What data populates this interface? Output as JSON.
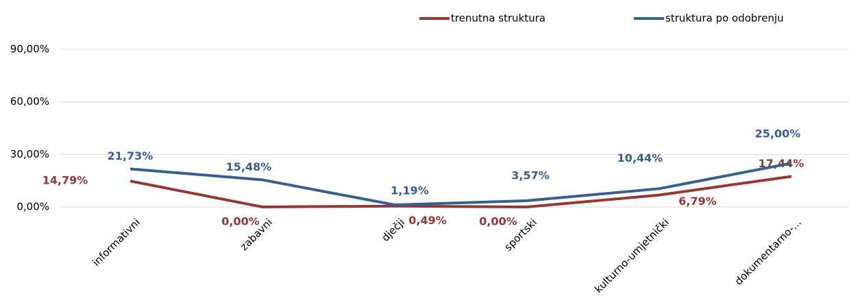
{
  "chart_data": {
    "type": "line",
    "categories": [
      "informativni",
      "zabavni",
      "dječji",
      "sportski",
      "kulturno-umjetnički",
      "dokumentarno-..."
    ],
    "series": [
      {
        "name": "trenutna struktura",
        "color": "#953735",
        "values": [
          14.79,
          0,
          0.49,
          0,
          6.79,
          17.44
        ],
        "value_labels": [
          "14,79%",
          "0,00%",
          "0,49%",
          "0,00%",
          "6,79%",
          "17,44%"
        ]
      },
      {
        "name": "struktura po odobrenju",
        "color": "#376092",
        "values": [
          21.73,
          15.48,
          1.19,
          3.57,
          10.44,
          25.0
        ],
        "value_labels": [
          "21,73%",
          "15,48%",
          "1,19%",
          "3,57%",
          "10,44%",
          "25,00%"
        ]
      }
    ],
    "ylim": [
      0,
      90
    ],
    "yticks": [
      {
        "value": 0,
        "label": "0,00%"
      },
      {
        "value": 30,
        "label": "30,00%"
      },
      {
        "value": 60,
        "label": "60,00%"
      },
      {
        "value": 90,
        "label": "90,00%"
      }
    ],
    "grid": true,
    "legend": "top"
  }
}
